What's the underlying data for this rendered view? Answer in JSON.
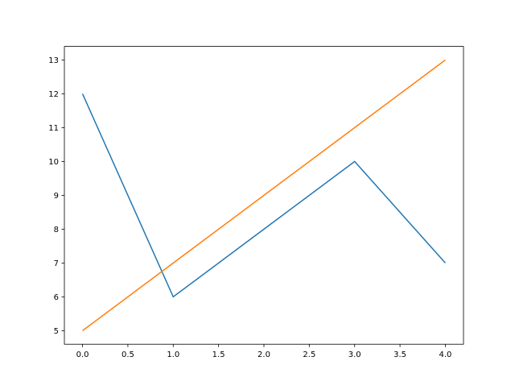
{
  "chart_data": {
    "type": "line",
    "title": "",
    "xlabel": "",
    "ylabel": "",
    "xlim": [
      -0.2,
      4.2
    ],
    "ylim": [
      4.6,
      13.4
    ],
    "grid": false,
    "x": [
      0,
      1,
      2,
      3,
      4
    ],
    "xticks": [
      "0.0",
      "0.5",
      "1.0",
      "1.5",
      "2.0",
      "2.5",
      "3.0",
      "3.5",
      "4.0"
    ],
    "yticks": [
      "5",
      "6",
      "7",
      "8",
      "9",
      "10",
      "11",
      "12",
      "13"
    ],
    "series": [
      {
        "values": [
          12,
          6,
          8,
          10,
          7
        ],
        "color": "#1f77b4"
      },
      {
        "values": [
          5,
          7,
          9,
          11,
          13
        ],
        "color": "#ff7f0e"
      }
    ]
  }
}
